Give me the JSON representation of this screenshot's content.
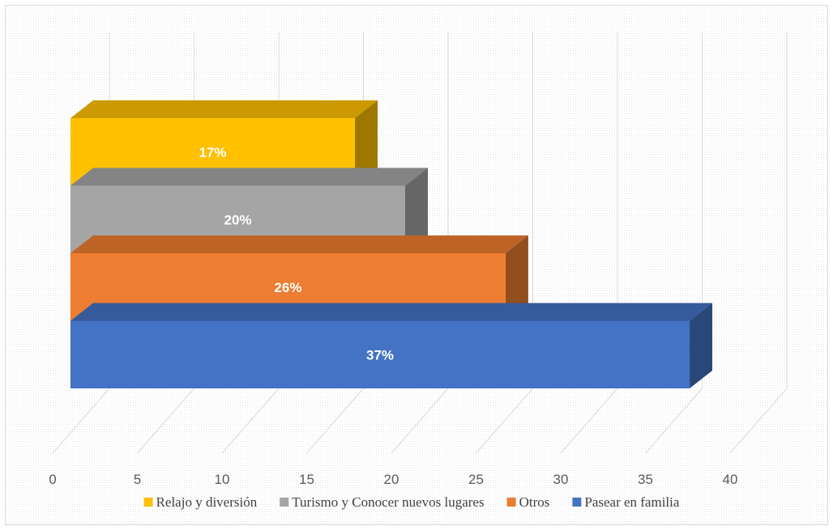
{
  "chart_data": {
    "type": "bar",
    "orientation": "horizontal",
    "three_d": true,
    "x_ticks": [
      "0",
      "5",
      "10",
      "15",
      "20",
      "25",
      "30",
      "35",
      "40"
    ],
    "xlim": [
      0,
      40
    ],
    "grid": true,
    "legend_position": "bottom",
    "series": [
      {
        "name": "Relajo y diversión",
        "value": 17,
        "label": "17%",
        "color": "#FFC000"
      },
      {
        "name": "Turismo y Conocer nuevos lugares",
        "value": 20,
        "label": "20%",
        "color": "#A5A5A5"
      },
      {
        "name": "Otros",
        "value": 26,
        "label": "26%",
        "color": "#ED7D31"
      },
      {
        "name": "Pasear en familia",
        "value": 37,
        "label": "37%",
        "color": "#4472C4"
      }
    ]
  }
}
